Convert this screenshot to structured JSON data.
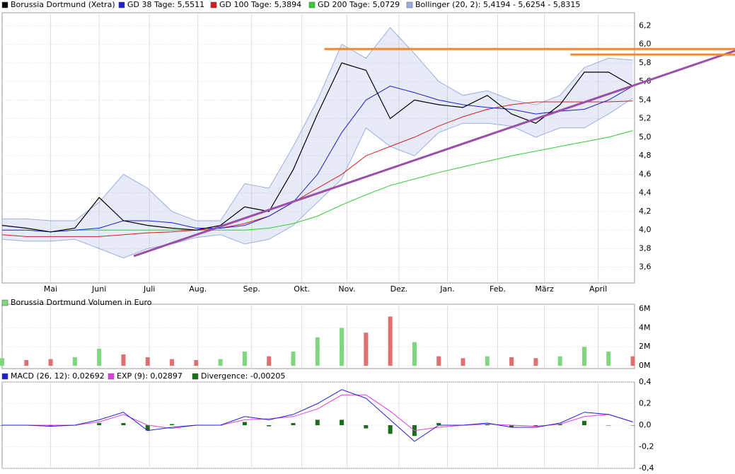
{
  "chart_data": [
    {
      "type": "line",
      "xlim": [
        0,
        365
      ],
      "xticks": [
        {
          "value": 28,
          "label": "Mai"
        },
        {
          "value": 56,
          "label": "Juni"
        },
        {
          "value": 85,
          "label": "Juli"
        },
        {
          "value": 113,
          "label": "Aug."
        },
        {
          "value": 144,
          "label": "Sep."
        },
        {
          "value": 173,
          "label": "Okt."
        },
        {
          "value": 199,
          "label": "Nov."
        },
        {
          "value": 229,
          "label": "Dez."
        },
        {
          "value": 257,
          "label": "Jan."
        },
        {
          "value": 286,
          "label": "Feb."
        },
        {
          "value": 313,
          "label": "März"
        },
        {
          "value": 344,
          "label": "April"
        }
      ],
      "ylim": [
        3.43,
        6.34
      ],
      "yticks": [
        {
          "value": 3.6,
          "label": "3,6"
        },
        {
          "value": 3.8,
          "label": "3,8"
        },
        {
          "value": 4.0,
          "label": "4,0"
        },
        {
          "value": 4.2,
          "label": "4,2"
        },
        {
          "value": 4.4,
          "label": "4,4"
        },
        {
          "value": 4.6,
          "label": "4,6"
        },
        {
          "value": 4.8,
          "label": "4,8"
        },
        {
          "value": 5.0,
          "label": "5,0"
        },
        {
          "value": 5.2,
          "label": "5,2"
        },
        {
          "value": 5.4,
          "label": "5,4"
        },
        {
          "value": 5.6,
          "label": "5,6"
        },
        {
          "value": 5.8,
          "label": "5,8"
        },
        {
          "value": 6.0,
          "label": "6,0"
        },
        {
          "value": 6.2,
          "label": "6,2"
        }
      ],
      "grid": true,
      "x": [
        0,
        14,
        28,
        42,
        56,
        70,
        84,
        98,
        112,
        126,
        140,
        154,
        168,
        182,
        196,
        210,
        224,
        238,
        252,
        266,
        280,
        294,
        308,
        322,
        336,
        350,
        364
      ],
      "series": [
        {
          "name": "Borussia Dortmund (Xetra)",
          "color": "#000000",
          "values": [
            4.05,
            4.02,
            3.98,
            4.02,
            4.35,
            4.1,
            4.05,
            4.02,
            4.0,
            4.05,
            4.25,
            4.2,
            4.65,
            5.25,
            5.8,
            5.72,
            5.2,
            5.4,
            5.35,
            5.32,
            5.45,
            5.25,
            5.15,
            5.35,
            5.7,
            5.7,
            5.55
          ]
        },
        {
          "name": "GD 38 Tage: 5,5511",
          "color": "#1f1fd0",
          "values": [
            4.0,
            4.0,
            3.98,
            4.0,
            4.02,
            4.1,
            4.1,
            4.08,
            4.02,
            4.02,
            4.05,
            4.15,
            4.3,
            4.6,
            5.05,
            5.4,
            5.55,
            5.48,
            5.4,
            5.35,
            5.32,
            5.3,
            5.25,
            5.28,
            5.3,
            5.4,
            5.55
          ]
        },
        {
          "name": "GD 100 Tage: 5,3894",
          "color": "#d42020",
          "values": [
            3.95,
            3.93,
            3.93,
            3.93,
            3.93,
            3.95,
            3.97,
            3.98,
            4.0,
            4.02,
            4.07,
            4.15,
            4.3,
            4.45,
            4.6,
            4.8,
            4.9,
            5.0,
            5.12,
            5.22,
            5.3,
            5.35,
            5.38,
            5.38,
            5.38,
            5.38,
            5.39
          ]
        },
        {
          "name": "GD 200 Tage: 5,0729",
          "color": "#33cc33",
          "values": [
            null,
            null,
            null,
            4.0,
            4.0,
            4.0,
            4.0,
            4.0,
            4.0,
            4.0,
            4.0,
            4.02,
            4.07,
            4.15,
            4.27,
            4.38,
            4.48,
            4.55,
            4.62,
            4.68,
            4.74,
            4.8,
            4.85,
            4.9,
            4.95,
            5.0,
            5.07
          ]
        }
      ],
      "bands": {
        "name": "Bollinger (20, 2): 5,4194 - 5,6254 - 5,8315",
        "color": "#9aaee0",
        "upper": [
          4.12,
          4.12,
          4.1,
          4.1,
          4.3,
          4.6,
          4.45,
          4.2,
          4.1,
          4.1,
          4.5,
          4.45,
          4.9,
          5.4,
          6.0,
          5.85,
          6.18,
          5.9,
          5.6,
          5.45,
          5.5,
          5.4,
          5.35,
          5.45,
          5.75,
          5.85,
          5.83
        ],
        "lower": [
          3.9,
          3.88,
          3.88,
          3.9,
          3.8,
          3.7,
          3.8,
          3.85,
          3.92,
          3.95,
          3.85,
          3.9,
          4.05,
          4.3,
          4.55,
          5.1,
          4.9,
          4.8,
          5.05,
          5.15,
          5.15,
          5.12,
          5.0,
          5.1,
          5.1,
          5.25,
          5.42
        ]
      },
      "annotations": [
        {
          "color": "#9b4fa8",
          "x": [
            76,
            423
          ],
          "y": [
            3.72,
            5.93
          ]
        },
        {
          "color": "#f08a30",
          "x": [
            186,
            423
          ],
          "y": [
            5.95,
            5.95
          ]
        },
        {
          "color": "#f08a30",
          "x": [
            328,
            423
          ],
          "y": [
            5.89,
            5.89
          ]
        }
      ]
    },
    {
      "type": "bar",
      "title": "Borussia Dortmund Volumen in Euro",
      "legend_color": "#7fd67f",
      "ylim": [
        -0.3,
        6.5
      ],
      "yticks": [
        {
          "value": 0,
          "label": "0M"
        },
        {
          "value": 2,
          "label": "2M"
        },
        {
          "value": 4,
          "label": "4M"
        },
        {
          "value": 6,
          "label": "6M"
        }
      ],
      "x": [
        0,
        14,
        28,
        42,
        56,
        70,
        84,
        98,
        112,
        126,
        140,
        154,
        168,
        182,
        196,
        210,
        224,
        238,
        252,
        266,
        280,
        294,
        308,
        322,
        336,
        350,
        364
      ],
      "values": [
        0.8,
        0.6,
        0.7,
        0.9,
        1.8,
        1.2,
        0.9,
        0.7,
        0.6,
        0.7,
        1.5,
        1.0,
        1.5,
        3.0,
        4.0,
        3.5,
        5.2,
        2.5,
        1.0,
        0.8,
        1.0,
        0.9,
        0.8,
        1.0,
        2.0,
        1.5,
        1.0
      ],
      "colors": [
        "#7fd67f",
        "#e07070",
        "#e07070",
        "#7fd67f",
        "#7fd67f",
        "#e07070",
        "#e07070",
        "#e07070",
        "#e07070",
        "#7fd67f",
        "#7fd67f",
        "#e07070",
        "#7fd67f",
        "#7fd67f",
        "#7fd67f",
        "#e07070",
        "#e07070",
        "#7fd67f",
        "#e07070",
        "#e07070",
        "#7fd67f",
        "#e07070",
        "#e07070",
        "#7fd67f",
        "#7fd67f",
        "#7fd67f",
        "#e07070"
      ]
    },
    {
      "type": "macd",
      "ylim": [
        -0.4,
        0.4
      ],
      "yticks": [
        {
          "value": -0.4,
          "label": "-0,4"
        },
        {
          "value": -0.2,
          "label": "-0,2"
        },
        {
          "value": 0,
          "label": "0,0"
        },
        {
          "value": 0.2,
          "label": "0,2"
        },
        {
          "value": 0.4,
          "label": "0,4"
        }
      ],
      "x": [
        0,
        14,
        28,
        42,
        56,
        70,
        84,
        98,
        112,
        126,
        140,
        154,
        168,
        182,
        196,
        210,
        224,
        238,
        252,
        266,
        280,
        294,
        308,
        322,
        336,
        350,
        364
      ],
      "series": [
        {
          "name": "MACD (26, 12): 0,02692",
          "color": "#1f1fd0",
          "values": [
            0.0,
            0.0,
            -0.01,
            0.0,
            0.05,
            0.12,
            -0.05,
            -0.02,
            0.0,
            0.0,
            0.08,
            0.05,
            0.1,
            0.2,
            0.33,
            0.25,
            0.05,
            -0.15,
            0.0,
            0.0,
            0.02,
            -0.02,
            -0.02,
            0.02,
            0.12,
            0.1,
            0.03
          ]
        },
        {
          "name": "EXP (9): 0,02897",
          "color": "#e040e0",
          "values": [
            0.0,
            0.0,
            0.0,
            0.0,
            0.03,
            0.1,
            0.0,
            -0.03,
            0.0,
            0.0,
            0.05,
            0.06,
            0.08,
            0.15,
            0.28,
            0.28,
            0.13,
            -0.05,
            -0.02,
            0.0,
            0.01,
            0.0,
            -0.01,
            0.01,
            0.08,
            0.1,
            0.03
          ]
        }
      ],
      "divergence": {
        "name": "Divergence: -0,00205",
        "color": "#1a6e1a",
        "values": [
          0,
          0,
          -0.01,
          0,
          0.02,
          0.02,
          -0.05,
          0.01,
          0,
          0,
          0.03,
          -0.01,
          0.02,
          0.05,
          0.05,
          -0.03,
          -0.08,
          -0.1,
          0.02,
          0,
          0.01,
          -0.02,
          -0.01,
          0.01,
          0.04,
          0,
          0
        ]
      }
    }
  ]
}
